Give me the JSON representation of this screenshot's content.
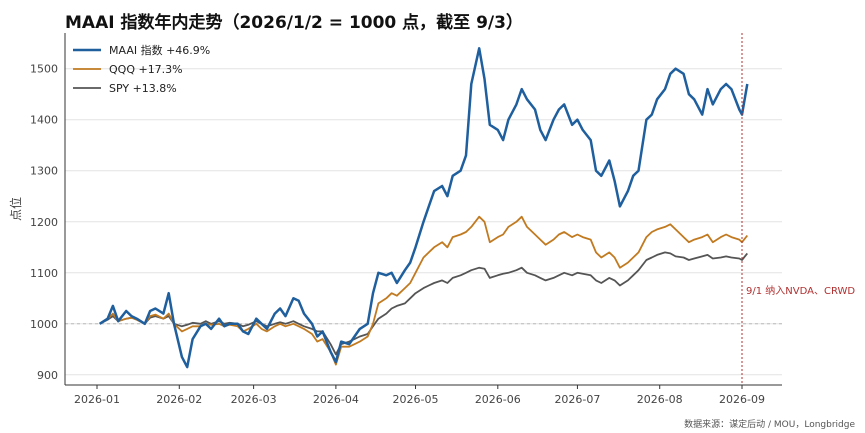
{
  "chart_data": {
    "type": "line",
    "title": "MAAI 指数年内走势（2026/1/2 = 1000 点，截至 9/3）",
    "ylabel": "点位",
    "xlabel": "",
    "ylim": [
      880,
      1570
    ],
    "yticks": [
      900,
      1000,
      1100,
      1200,
      1300,
      1400,
      1500
    ],
    "xticks": [
      "2026-01",
      "2026-02",
      "2026-03",
      "2026-04",
      "2026-05",
      "2026-06",
      "2026-07",
      "2026-08",
      "2026-09"
    ],
    "grid": "horizontal",
    "legend_position": "top-left",
    "baseline": 1000,
    "x": [
      "01-02",
      "01-05",
      "01-07",
      "01-09",
      "01-12",
      "01-14",
      "01-16",
      "01-19",
      "01-21",
      "01-23",
      "01-26",
      "01-28",
      "01-30",
      "02-02",
      "02-04",
      "02-06",
      "02-09",
      "02-11",
      "02-13",
      "02-16",
      "02-18",
      "02-20",
      "02-23",
      "02-25",
      "02-27",
      "03-02",
      "03-04",
      "03-06",
      "03-09",
      "03-11",
      "03-13",
      "03-16",
      "03-18",
      "03-20",
      "03-23",
      "03-25",
      "03-27",
      "03-30",
      "04-01",
      "04-03",
      "04-06",
      "04-08",
      "04-10",
      "04-13",
      "04-15",
      "04-17",
      "04-20",
      "04-22",
      "04-24",
      "04-27",
      "04-29",
      "05-01",
      "05-04",
      "05-06",
      "05-08",
      "05-11",
      "05-13",
      "05-15",
      "05-18",
      "05-20",
      "05-22",
      "05-25",
      "05-27",
      "05-29",
      "06-01",
      "06-03",
      "06-05",
      "06-08",
      "06-10",
      "06-12",
      "06-15",
      "06-17",
      "06-19",
      "06-22",
      "06-24",
      "06-26",
      "06-29",
      "07-01",
      "07-03",
      "07-06",
      "07-08",
      "07-10",
      "07-13",
      "07-15",
      "07-17",
      "07-20",
      "07-22",
      "07-24",
      "07-27",
      "07-29",
      "07-31",
      "08-03",
      "08-05",
      "08-07",
      "08-10",
      "08-12",
      "08-14",
      "08-17",
      "08-19",
      "08-21",
      "08-24",
      "08-26",
      "08-28",
      "08-31",
      "09-01",
      "09-03"
    ],
    "series": [
      {
        "name": "MAAI 指数 +46.9%",
        "color": "#1f5f9e",
        "width": 2.5,
        "values": [
          1000,
          1010,
          1035,
          1005,
          1025,
          1015,
          1010,
          1000,
          1025,
          1030,
          1020,
          1060,
          1000,
          935,
          915,
          970,
          995,
          1000,
          990,
          1010,
          995,
          1000,
          1000,
          985,
          980,
          1010,
          1000,
          990,
          1020,
          1030,
          1015,
          1050,
          1045,
          1020,
          1000,
          975,
          985,
          945,
          925,
          965,
          960,
          975,
          990,
          1000,
          1060,
          1100,
          1095,
          1100,
          1080,
          1105,
          1120,
          1150,
          1200,
          1230,
          1260,
          1270,
          1250,
          1290,
          1300,
          1330,
          1470,
          1540,
          1480,
          1390,
          1380,
          1360,
          1400,
          1430,
          1460,
          1440,
          1420,
          1380,
          1360,
          1400,
          1420,
          1430,
          1390,
          1400,
          1380,
          1360,
          1300,
          1290,
          1320,
          1280,
          1230,
          1260,
          1290,
          1300,
          1400,
          1410,
          1440,
          1460,
          1490,
          1500,
          1490,
          1450,
          1440,
          1410,
          1460,
          1430,
          1460,
          1470,
          1460,
          1420,
          1410,
          1470
        ]
      },
      {
        "name": "QQQ +17.3%",
        "color": "#c17a20",
        "width": 1.8,
        "values": [
          1000,
          1010,
          1020,
          1005,
          1010,
          1012,
          1008,
          1000,
          1015,
          1018,
          1010,
          1020,
          1000,
          985,
          990,
          995,
          995,
          1000,
          998,
          1000,
          995,
          998,
          995,
          985,
          990,
          1000,
          990,
          985,
          995,
          1000,
          995,
          1000,
          995,
          990,
          980,
          965,
          970,
          945,
          920,
          955,
          955,
          960,
          965,
          975,
          1000,
          1040,
          1050,
          1060,
          1055,
          1070,
          1080,
          1100,
          1130,
          1140,
          1150,
          1160,
          1150,
          1170,
          1175,
          1180,
          1190,
          1210,
          1200,
          1160,
          1170,
          1175,
          1190,
          1200,
          1210,
          1190,
          1175,
          1165,
          1155,
          1165,
          1175,
          1180,
          1170,
          1175,
          1170,
          1165,
          1140,
          1130,
          1140,
          1130,
          1110,
          1120,
          1130,
          1140,
          1170,
          1180,
          1185,
          1190,
          1195,
          1185,
          1170,
          1160,
          1165,
          1170,
          1175,
          1160,
          1170,
          1175,
          1170,
          1165,
          1160,
          1173
        ]
      },
      {
        "name": "SPY +13.8%",
        "color": "#555555",
        "width": 1.8,
        "values": [
          1000,
          1008,
          1015,
          1005,
          1010,
          1012,
          1008,
          1000,
          1012,
          1015,
          1010,
          1015,
          1000,
          995,
          998,
          1002,
          1000,
          1005,
          1000,
          1005,
          1000,
          1002,
          1000,
          995,
          998,
          1005,
          1000,
          995,
          1000,
          1003,
          1000,
          1005,
          1000,
          995,
          990,
          985,
          985,
          960,
          940,
          960,
          965,
          970,
          975,
          980,
          995,
          1010,
          1020,
          1030,
          1035,
          1040,
          1050,
          1060,
          1070,
          1075,
          1080,
          1085,
          1080,
          1090,
          1095,
          1100,
          1105,
          1110,
          1108,
          1090,
          1095,
          1098,
          1100,
          1105,
          1110,
          1100,
          1095,
          1090,
          1085,
          1090,
          1095,
          1100,
          1095,
          1100,
          1098,
          1095,
          1085,
          1080,
          1090,
          1085,
          1075,
          1085,
          1095,
          1105,
          1125,
          1130,
          1135,
          1140,
          1138,
          1132,
          1130,
          1125,
          1128,
          1132,
          1135,
          1128,
          1130,
          1132,
          1130,
          1128,
          1125,
          1138
        ]
      }
    ],
    "annotation": {
      "x": "09-01",
      "label": "9/1 纳入NVDA、CRWD",
      "color": "#b03030"
    }
  },
  "source_note": "数据来源：谋定后动 / MOU，Longbridge"
}
